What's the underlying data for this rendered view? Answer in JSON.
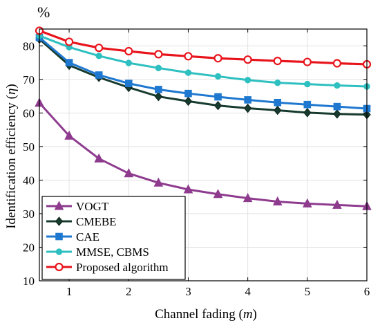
{
  "chart_data": {
    "type": "line",
    "unit_label": "%",
    "xlabel_prefix": "Channel fading (",
    "xlabel_var": "m",
    "xlabel_suffix": ")",
    "ylabel_prefix": "Identification efficiency (",
    "ylabel_var": "η",
    "ylabel_suffix": ")",
    "xlim": [
      0.5,
      6
    ],
    "ylim": [
      10,
      85
    ],
    "xticks": [
      1,
      2,
      3,
      4,
      5,
      6
    ],
    "yticks": [
      10,
      20,
      30,
      40,
      50,
      60,
      70,
      80
    ],
    "grid": true,
    "legend_position": "bottom-left",
    "x": [
      0.5,
      1,
      1.5,
      2,
      2.5,
      3,
      3.5,
      4,
      4.5,
      5,
      5.5,
      6
    ],
    "series": [
      {
        "name": "VOGT",
        "color": "#8e3b8e",
        "marker": "triangle",
        "values": [
          63.0,
          53.2,
          46.4,
          42.0,
          39.2,
          37.2,
          35.8,
          34.6,
          33.6,
          33.0,
          32.6,
          32.2
        ]
      },
      {
        "name": "CMEBE",
        "color": "#173b2e",
        "marker": "diamond",
        "values": [
          82.0,
          74.2,
          70.6,
          67.6,
          64.9,
          63.5,
          62.2,
          61.4,
          60.8,
          60.1,
          59.7,
          59.5
        ]
      },
      {
        "name": "CAE",
        "color": "#1f78d0",
        "marker": "square",
        "values": [
          82.5,
          75.0,
          71.3,
          68.8,
          67.0,
          65.8,
          64.8,
          63.9,
          63.1,
          62.5,
          61.9,
          61.3
        ]
      },
      {
        "name": "MMSE, CBMS",
        "color": "#2ebfc0",
        "marker": "circle-filled",
        "values": [
          83.0,
          79.6,
          77.0,
          74.9,
          73.4,
          72.0,
          70.9,
          69.8,
          69.0,
          68.6,
          68.2,
          67.9
        ]
      },
      {
        "name": "Proposed algorithm",
        "color": "#e8141c",
        "marker": "circle-open",
        "values": [
          84.5,
          81.2,
          79.4,
          78.4,
          77.5,
          76.9,
          76.3,
          75.9,
          75.5,
          75.2,
          74.8,
          74.5
        ]
      }
    ]
  }
}
